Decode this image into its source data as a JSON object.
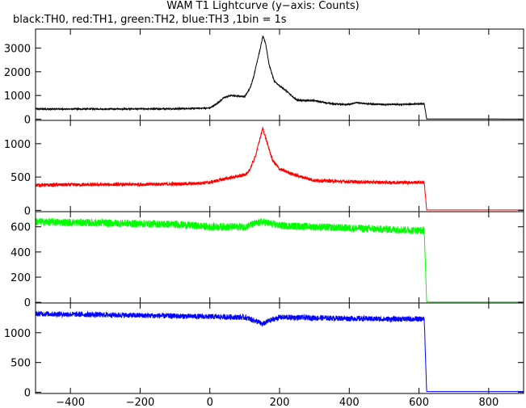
{
  "title": "WAM T1 Lightcurve (y−axis: Counts)",
  "subtitle": "black:TH0, red:TH1, green:TH2, blue:TH3 ,1bin = 1s",
  "chart_data": {
    "type": "line",
    "x_range": [
      -500,
      900
    ],
    "x_ticks": [
      -400,
      -200,
      0,
      200,
      400,
      600,
      800
    ],
    "x_tick_labels": [
      "−400",
      "−200",
      "0",
      "200",
      "400",
      "600",
      "800"
    ],
    "panels": [
      {
        "name": "TH0",
        "color": "#000000",
        "y_range": [
          -50,
          3800
        ],
        "y_ticks": [
          0,
          1000,
          2000,
          3000
        ],
        "y_tick_labels": [
          "0",
          "1000",
          "2000",
          "3000"
        ],
        "noise": 25,
        "points": [
          [
            -500,
            430
          ],
          [
            -300,
            430
          ],
          [
            -100,
            440
          ],
          [
            0,
            470
          ],
          [
            20,
            650
          ],
          [
            40,
            900
          ],
          [
            60,
            1000
          ],
          [
            80,
            980
          ],
          [
            100,
            950
          ],
          [
            115,
            1300
          ],
          [
            125,
            1750
          ],
          [
            135,
            2400
          ],
          [
            145,
            3000
          ],
          [
            152,
            3500
          ],
          [
            160,
            3200
          ],
          [
            170,
            2300
          ],
          [
            185,
            1600
          ],
          [
            200,
            1400
          ],
          [
            215,
            1250
          ],
          [
            230,
            1050
          ],
          [
            250,
            800
          ],
          [
            300,
            780
          ],
          [
            350,
            650
          ],
          [
            400,
            620
          ],
          [
            420,
            700
          ],
          [
            450,
            650
          ],
          [
            500,
            620
          ],
          [
            550,
            620
          ],
          [
            615,
            650
          ],
          [
            622,
            10
          ],
          [
            900,
            5
          ]
        ]
      },
      {
        "name": "TH1",
        "color": "#ff0000",
        "y_range": [
          -20,
          1350
        ],
        "y_ticks": [
          0,
          500,
          1000
        ],
        "y_tick_labels": [
          "0",
          "500",
          "1000"
        ],
        "noise": 25,
        "points": [
          [
            -500,
            380
          ],
          [
            -200,
            390
          ],
          [
            -50,
            400
          ],
          [
            0,
            420
          ],
          [
            50,
            480
          ],
          [
            90,
            520
          ],
          [
            110,
            560
          ],
          [
            130,
            800
          ],
          [
            145,
            1100
          ],
          [
            152,
            1230
          ],
          [
            165,
            1000
          ],
          [
            180,
            750
          ],
          [
            200,
            620
          ],
          [
            250,
            520
          ],
          [
            300,
            450
          ],
          [
            400,
            430
          ],
          [
            500,
            420
          ],
          [
            615,
            420
          ],
          [
            622,
            5
          ],
          [
            900,
            5
          ]
        ]
      },
      {
        "name": "TH2",
        "color": "#00ff00",
        "y_range": [
          -5,
          720
        ],
        "y_ticks": [
          0,
          200,
          400,
          600
        ],
        "y_tick_labels": [
          "0",
          "200",
          "400",
          "600"
        ],
        "noise": 30,
        "points": [
          [
            -500,
            640
          ],
          [
            -300,
            630
          ],
          [
            -100,
            620
          ],
          [
            0,
            600
          ],
          [
            100,
            600
          ],
          [
            150,
            640
          ],
          [
            200,
            610
          ],
          [
            300,
            600
          ],
          [
            400,
            590
          ],
          [
            500,
            580
          ],
          [
            615,
            570
          ],
          [
            622,
            3
          ],
          [
            900,
            3
          ]
        ]
      },
      {
        "name": "TH3",
        "color": "#0000ff",
        "y_range": [
          -20,
          1500
        ],
        "y_ticks": [
          0,
          500,
          1000
        ],
        "y_tick_labels": [
          "0",
          "500",
          "1000"
        ],
        "noise": 45,
        "points": [
          [
            -500,
            1320
          ],
          [
            -300,
            1300
          ],
          [
            -100,
            1280
          ],
          [
            0,
            1270
          ],
          [
            100,
            1260
          ],
          [
            140,
            1180
          ],
          [
            150,
            1140
          ],
          [
            170,
            1200
          ],
          [
            200,
            1260
          ],
          [
            300,
            1250
          ],
          [
            400,
            1240
          ],
          [
            500,
            1230
          ],
          [
            615,
            1230
          ],
          [
            622,
            12
          ],
          [
            900,
            12
          ]
        ]
      }
    ],
    "grid": false,
    "legend": "subtitle text"
  }
}
